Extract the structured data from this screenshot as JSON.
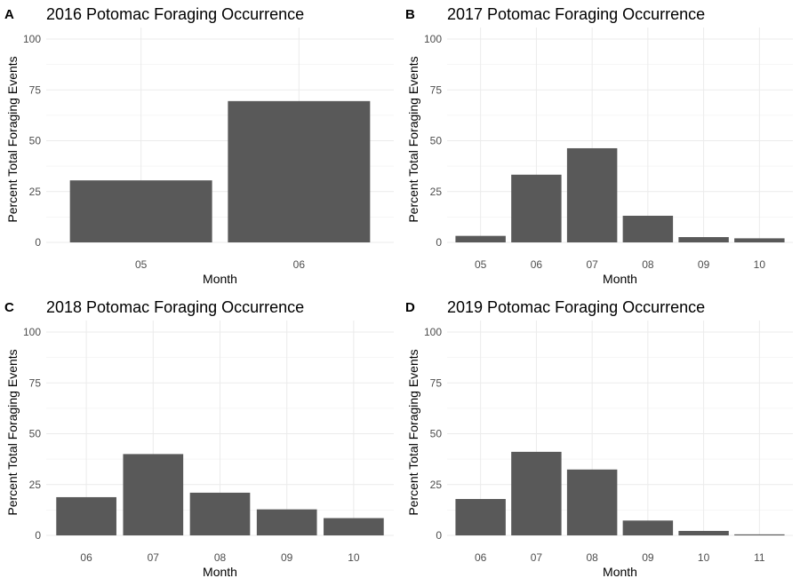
{
  "chart_data": [
    {
      "type": "bar",
      "panel_letter": "A",
      "title": "2016 Potomac Foraging Occurrence",
      "xlabel": "Month",
      "ylabel": "Percent Total Foraging Events",
      "ylim": [
        0,
        100
      ],
      "yticks": [
        "0",
        "25",
        "50",
        "75",
        "100"
      ],
      "categories": [
        "05",
        "06"
      ],
      "values": [
        30.5,
        69.5
      ],
      "grid": true,
      "bar_color": "#595959"
    },
    {
      "type": "bar",
      "panel_letter": "B",
      "title": "2017 Potomac Foraging Occurrence",
      "xlabel": "Month",
      "ylabel": "Percent Total Foraging Events",
      "ylim": [
        0,
        100
      ],
      "yticks": [
        "0",
        "25",
        "50",
        "75",
        "100"
      ],
      "categories": [
        "05",
        "06",
        "07",
        "08",
        "09",
        "10"
      ],
      "values": [
        3.2,
        33.3,
        46.3,
        13.1,
        2.6,
        2.0
      ],
      "grid": true,
      "bar_color": "#595959"
    },
    {
      "type": "bar",
      "panel_letter": "C",
      "title": "2018 Potomac Foraging Occurrence",
      "xlabel": "Month",
      "ylabel": "Percent Total Foraging Events",
      "ylim": [
        0,
        100
      ],
      "yticks": [
        "0",
        "25",
        "50",
        "75",
        "100"
      ],
      "categories": [
        "06",
        "07",
        "08",
        "09",
        "10"
      ],
      "values": [
        18.8,
        40.0,
        21.0,
        12.8,
        8.5
      ],
      "grid": true,
      "bar_color": "#595959"
    },
    {
      "type": "bar",
      "panel_letter": "D",
      "title": "2019 Potomac Foraging Occurrence",
      "xlabel": "Month",
      "ylabel": "Percent Total Foraging Events",
      "ylim": [
        0,
        100
      ],
      "yticks": [
        "0",
        "25",
        "50",
        "75",
        "100"
      ],
      "categories": [
        "06",
        "07",
        "08",
        "09",
        "10",
        "11"
      ],
      "values": [
        17.9,
        41.1,
        32.4,
        7.3,
        2.2,
        0.5
      ],
      "grid": true,
      "bar_color": "#595959"
    }
  ]
}
